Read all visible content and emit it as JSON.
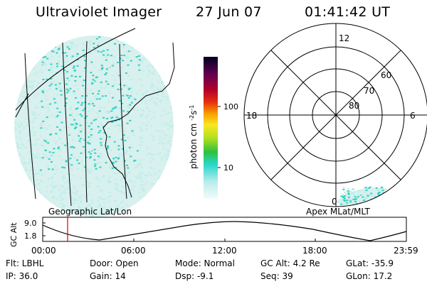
{
  "header": {
    "instrument": "Ultraviolet Imager",
    "date": "27 Jun 07",
    "time": "01:41:42 UT"
  },
  "colorbar": {
    "unit_label": "photon cm-2s-1",
    "ticks": [
      "100",
      "10"
    ]
  },
  "polar_plot": {
    "mlt_labels": {
      "top": "12",
      "left": "18",
      "right": "6",
      "bottom": "0"
    },
    "lat_labels": [
      "60",
      "70",
      "80"
    ]
  },
  "panel_labels": {
    "left": "Geographic Lat/Lon",
    "right": "Apex MLat/MLT"
  },
  "altitude_chart": {
    "axis_label": "GC Alt",
    "y_ticks": [
      "9.0",
      "1.8"
    ],
    "x_ticks": [
      "00:00",
      "06:00",
      "12:00",
      "18:00",
      "23:59"
    ]
  },
  "status": {
    "filter": "Flt: LBHL",
    "ip": "IP: 36.0",
    "door": "Door: Open",
    "gain": "Gain: 14",
    "mode": "Mode: Normal",
    "dsp": "Dsp:    -9.1",
    "gc_alt": "GC Alt: 4.2 Re",
    "seq": "Seq: 39",
    "glat": "GLat: -35.9",
    "glon": "GLon:  17.2"
  },
  "colors": {
    "aurora_cyan": "#2fd3c4",
    "aurora_pale": "#bfeee8",
    "time_marker": "#e00000"
  }
}
